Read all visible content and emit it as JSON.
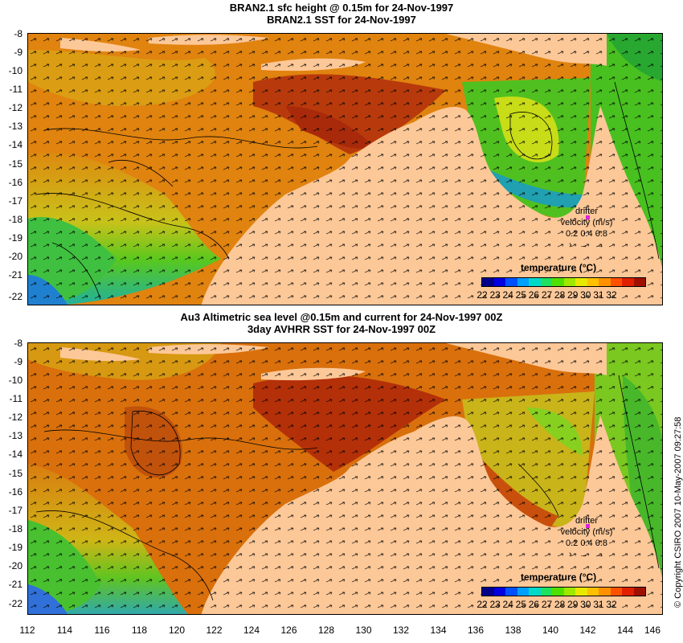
{
  "top_panel": {
    "title_line1": "BRAN2.1 sfc height @ 0.15m for 24-Nov-1997",
    "title_line2": "BRAN2.1 SST for 24-Nov-1997"
  },
  "bottom_panel": {
    "title_line1": "Au3 Altimetric sea level  @0.15m and current for 24-Nov-1997 00Z",
    "title_line2": "3day AVHRR SST for 24-Nov-1997 00Z"
  },
  "y_axis_labels": [
    "-8",
    "-9",
    "-10",
    "-11",
    "-12",
    "-13",
    "-14",
    "-15",
    "-16",
    "-17",
    "-18",
    "-19",
    "-20",
    "-21",
    "-22"
  ],
  "x_axis_labels": [
    "112",
    "114",
    "116",
    "118",
    "120",
    "122",
    "124",
    "126",
    "128",
    "130",
    "132",
    "134",
    "136",
    "138",
    "140",
    "142",
    "144",
    "146"
  ],
  "legend": {
    "drifter_line1": "drifter",
    "drifter_line2": "velocity (m/s)",
    "drifter_scale": "0.2  0.4  0.8",
    "colorbar_title": "temperature (°C)",
    "colorbar_labels": [
      "22",
      "23",
      "24",
      "25",
      "26",
      "27",
      "28",
      "29",
      "30",
      "31",
      "32"
    ],
    "colorbar_colors": [
      "#00008b",
      "#0000e0",
      "#0050ff",
      "#00a0ff",
      "#00d8c8",
      "#20e060",
      "#50e000",
      "#a0e800",
      "#e8e800",
      "#ffc000",
      "#ff9000",
      "#ff5000",
      "#e02000",
      "#a01000"
    ]
  },
  "copyright": "© Copyright CSIRO 2007  10-May-2007 09:27:58",
  "map_colors": {
    "land": "#fdc898",
    "warm": "#d4620c",
    "hot": "#b3300a",
    "orange": "#e4900e",
    "yellow": "#e9cf12",
    "green": "#52c61e",
    "cyan": "#20c0b0",
    "blue": "#2050e0"
  }
}
